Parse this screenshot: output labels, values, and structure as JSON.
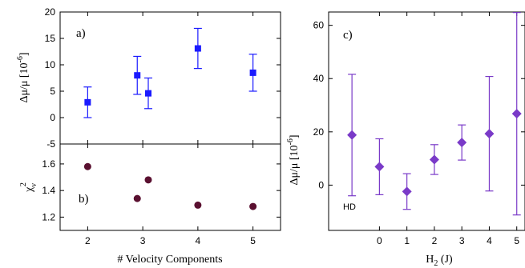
{
  "chart_data": [
    {
      "type": "scatter",
      "panel": "a)",
      "xlabel": "",
      "ylabel": "Δμ/μ [10⁻⁶]",
      "xlim": [
        1.5,
        5.5
      ],
      "ylim": [
        -5,
        20
      ],
      "xticks": [
        2,
        3,
        4,
        5
      ],
      "yticks": [
        -5,
        0,
        5,
        10,
        15,
        20
      ],
      "ytick_labels": [
        "-5",
        "0",
        "5",
        "10",
        "15",
        "20"
      ],
      "marker": "square",
      "color": "#1a1aff",
      "points": [
        {
          "x": 2.0,
          "y": 2.9,
          "err": 2.9
        },
        {
          "x": 2.9,
          "y": 8.0,
          "err": 3.6
        },
        {
          "x": 3.1,
          "y": 4.6,
          "err": 2.9
        },
        {
          "x": 4.0,
          "y": 13.1,
          "err": 3.8
        },
        {
          "x": 5.0,
          "y": 8.5,
          "err": 3.5
        }
      ]
    },
    {
      "type": "scatter",
      "panel": "b)",
      "xlabel": "# Velocity Components",
      "ylabel": "χν²",
      "xlim": [
        1.5,
        5.5
      ],
      "ylim": [
        1.1,
        1.75
      ],
      "xticks": [
        2,
        3,
        4,
        5
      ],
      "xtick_labels": [
        "2",
        "3",
        "4",
        "5"
      ],
      "yticks": [
        1.2,
        1.4,
        1.6
      ],
      "ytick_labels": [
        "1.2",
        "1.4",
        "1.6"
      ],
      "marker": "circle",
      "color": "#5a1030",
      "points": [
        {
          "x": 2.0,
          "y": 1.58
        },
        {
          "x": 2.9,
          "y": 1.34
        },
        {
          "x": 3.1,
          "y": 1.48
        },
        {
          "x": 4.0,
          "y": 1.29
        },
        {
          "x": 5.0,
          "y": 1.28
        }
      ]
    },
    {
      "type": "scatter",
      "panel": "c)",
      "xlabel": "H₂ (J)",
      "ylabel": "Δμ/μ [10⁻⁶]",
      "xlim": [
        -1.85,
        5.3
      ],
      "ylim": [
        -17,
        65
      ],
      "xticks": [
        0,
        1,
        2,
        3,
        4,
        5
      ],
      "xtick_labels": [
        "0",
        "1",
        "2",
        "3",
        "4",
        "5"
      ],
      "yticks": [
        0,
        20,
        40,
        60
      ],
      "ytick_labels": [
        "0",
        "20",
        "40",
        "60"
      ],
      "marker": "diamond",
      "color": "#7a3ac8",
      "annotation": "HD",
      "points": [
        {
          "x": -1.0,
          "y": 18.8,
          "err": 22.8
        },
        {
          "x": 0.0,
          "y": 6.9,
          "err": 10.5
        },
        {
          "x": 1.0,
          "y": -2.4,
          "err": 6.7
        },
        {
          "x": 2.0,
          "y": 9.6,
          "err": 5.6
        },
        {
          "x": 3.0,
          "y": 16.0,
          "err": 6.6
        },
        {
          "x": 4.0,
          "y": 19.3,
          "err": 21.5
        },
        {
          "x": 5.0,
          "y": 26.8,
          "err": 38.0
        }
      ]
    }
  ]
}
